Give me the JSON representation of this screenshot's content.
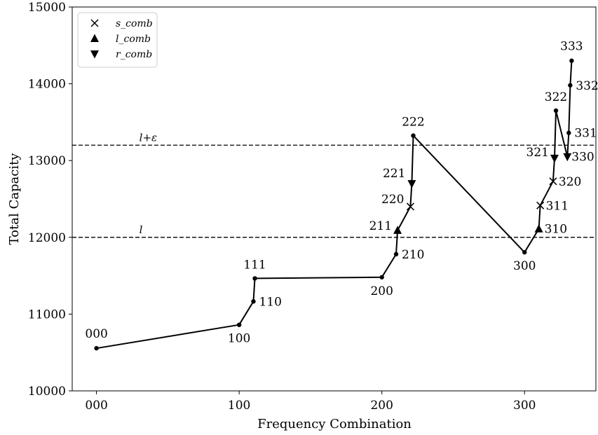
{
  "chart_data": {
    "type": "line",
    "xlabel": "Frequency Combination",
    "ylabel": "Total Capacity",
    "xlim": [
      -17,
      350
    ],
    "ylim": [
      10000,
      15000
    ],
    "x_ticks": [
      0,
      100,
      200,
      300
    ],
    "x_tick_labels": [
      "000",
      "100",
      "200",
      "300"
    ],
    "y_ticks": [
      10000,
      11000,
      12000,
      13000,
      14000,
      15000
    ],
    "y_tick_labels": [
      "10000",
      "11000",
      "12000",
      "13000",
      "14000",
      "15000"
    ],
    "grid": false,
    "legend_position": "top-left",
    "legend": [
      {
        "marker": "x",
        "label": "s_comb"
      },
      {
        "marker": "triangle-up",
        "label": "l_comb"
      },
      {
        "marker": "triangle-down",
        "label": "r_comb"
      }
    ],
    "series": [
      {
        "color": "#000000",
        "points": [
          {
            "x": 0,
            "y": 10555,
            "label": "000",
            "marker": "dot"
          },
          {
            "x": 100,
            "y": 10860,
            "label": "100",
            "marker": "dot"
          },
          {
            "x": 110,
            "y": 11165,
            "label": "110",
            "marker": "dot"
          },
          {
            "x": 111,
            "y": 11465,
            "label": "111",
            "marker": "dot"
          },
          {
            "x": 200,
            "y": 11480,
            "label": "200",
            "marker": "dot"
          },
          {
            "x": 210,
            "y": 11780,
            "label": "210",
            "marker": "dot"
          },
          {
            "x": 211,
            "y": 12090,
            "label": "211",
            "marker": "triangle-up"
          },
          {
            "x": 220,
            "y": 12400,
            "label": "220",
            "marker": "x"
          },
          {
            "x": 221,
            "y": 12700,
            "label": "221",
            "marker": "triangle-down"
          },
          {
            "x": 222,
            "y": 13325,
            "label": "222",
            "marker": "dot"
          },
          {
            "x": 300,
            "y": 11805,
            "label": "300",
            "marker": "dot"
          },
          {
            "x": 310,
            "y": 12110,
            "label": "310",
            "marker": "triangle-up"
          },
          {
            "x": 311,
            "y": 12415,
            "label": "311",
            "marker": "x"
          },
          {
            "x": 320,
            "y": 12730,
            "label": "320",
            "marker": "x"
          },
          {
            "x": 321,
            "y": 13030,
            "label": "321",
            "marker": "triangle-down"
          },
          {
            "x": 322,
            "y": 13650,
            "label": "322",
            "marker": "dot"
          },
          {
            "x": 330,
            "y": 13050,
            "label": "330",
            "marker": "triangle-down"
          },
          {
            "x": 331,
            "y": 13360,
            "label": "331",
            "marker": "dot"
          },
          {
            "x": 332,
            "y": 13980,
            "label": "332",
            "marker": "dot"
          },
          {
            "x": 333,
            "y": 14300,
            "label": "333",
            "marker": "dot"
          }
        ]
      }
    ],
    "reference_lines": [
      {
        "y": 12000,
        "label": "l",
        "style": "dashed"
      },
      {
        "y": 13200,
        "label": "l+ε",
        "style": "dashed"
      }
    ]
  }
}
